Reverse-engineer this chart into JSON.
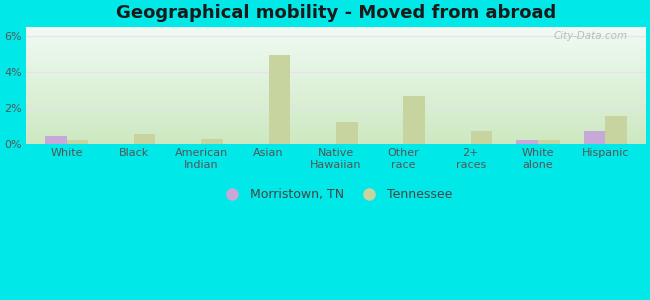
{
  "title": "Geographical mobility - Moved from abroad",
  "categories": [
    "White",
    "Black",
    "American\nIndian",
    "Asian",
    "Native\nHawaiian",
    "Other\nrace",
    "2+\nraces",
    "White\nalone",
    "Hispanic"
  ],
  "morristown": [
    0.45,
    0.0,
    0.0,
    0.0,
    0.0,
    0.0,
    0.0,
    0.2,
    0.75
  ],
  "tennessee": [
    0.2,
    0.55,
    0.3,
    4.9,
    1.2,
    2.65,
    0.75,
    0.25,
    1.55
  ],
  "morristown_color": "#c8a8d8",
  "tennessee_color": "#c8d4a0",
  "title_fontsize": 13,
  "tick_fontsize": 8,
  "ylim": [
    0,
    6.5
  ],
  "yticks": [
    0,
    2,
    4,
    6
  ],
  "ytick_labels": [
    "0%",
    "2%",
    "4%",
    "6%"
  ],
  "bar_width": 0.32,
  "background_color": "#00e8e8",
  "grad_top": "#f0faf4",
  "grad_bottom": "#cce8c0",
  "grid_color": "#e8e0f0",
  "watermark": "City-Data.com"
}
